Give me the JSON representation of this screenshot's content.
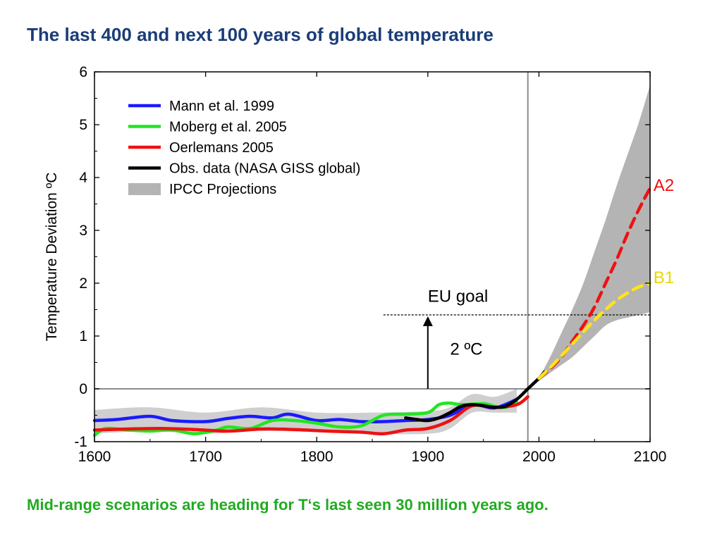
{
  "page": {
    "title": "The last 400 and next 100 years of global temperature",
    "caption": "Mid-range scenarios are heading for T‘s last seen 30 million years ago."
  },
  "chart_data": {
    "type": "line",
    "title": "The last 400 and next 100 years of global temperature",
    "xlabel": "",
    "ylabel": "Temperature Deviation ºC",
    "xlim": [
      1600,
      2100
    ],
    "ylim": [
      -1,
      6
    ],
    "x_ticks": [
      1600,
      1700,
      1800,
      1900,
      2000,
      2100
    ],
    "y_ticks": [
      -1,
      0,
      1,
      2,
      3,
      4,
      5,
      6
    ],
    "grid": false,
    "legend_position": "top-left",
    "legend": [
      {
        "label": "Mann et al. 1999",
        "color": "#1a1aff",
        "style": "line"
      },
      {
        "label": "Moberg et al. 2005",
        "color": "#22e622",
        "style": "line"
      },
      {
        "label": "Oerlemans 2005",
        "color": "#ee1111",
        "style": "line"
      },
      {
        "label": "Obs. data (NASA GISS global)",
        "color": "#000000",
        "style": "line"
      },
      {
        "label": "IPCC Projections",
        "color": "#b4b4b4",
        "style": "band"
      }
    ],
    "bands": [
      {
        "name": "Historical uncertainty",
        "color": "#cfcfcf",
        "x": [
          1600,
          1650,
          1700,
          1750,
          1800,
          1850,
          1900,
          1920,
          1940,
          1960,
          1980
        ],
        "upper": [
          -0.4,
          -0.35,
          -0.45,
          -0.35,
          -0.45,
          -0.45,
          -0.42,
          -0.35,
          -0.1,
          -0.15,
          0.0
        ],
        "lower": [
          -0.85,
          -0.8,
          -0.85,
          -0.8,
          -0.82,
          -0.85,
          -0.85,
          -0.75,
          -0.45,
          -0.45,
          -0.45
        ]
      },
      {
        "name": "IPCC Projections",
        "color": "#b4b4b4",
        "x": [
          2000,
          2010,
          2020,
          2030,
          2040,
          2050,
          2060,
          2070,
          2080,
          2090,
          2100
        ],
        "upper": [
          0.2,
          0.6,
          1.05,
          1.5,
          2.0,
          2.6,
          3.2,
          3.85,
          4.45,
          5.05,
          5.75
        ],
        "lower": [
          0.15,
          0.3,
          0.45,
          0.6,
          0.8,
          1.0,
          1.2,
          1.3,
          1.35,
          1.4,
          1.45
        ]
      }
    ],
    "series": [
      {
        "name": "Mann et al. 1999",
        "color": "#1a1aff",
        "x": [
          1600,
          1620,
          1650,
          1670,
          1700,
          1720,
          1740,
          1760,
          1775,
          1800,
          1820,
          1840,
          1860,
          1880,
          1900,
          1920,
          1940,
          1960,
          1980
        ],
        "y": [
          -0.6,
          -0.58,
          -0.52,
          -0.6,
          -0.62,
          -0.56,
          -0.52,
          -0.55,
          -0.48,
          -0.6,
          -0.58,
          -0.62,
          -0.62,
          -0.6,
          -0.58,
          -0.5,
          -0.3,
          -0.36,
          -0.2
        ]
      },
      {
        "name": "Moberg et al. 2005",
        "color": "#22e622",
        "x": [
          1600,
          1610,
          1630,
          1650,
          1670,
          1690,
          1710,
          1720,
          1740,
          1760,
          1780,
          1800,
          1820,
          1840,
          1860,
          1880,
          1900,
          1910,
          1920,
          1930,
          1950,
          1960,
          1970,
          1980
        ],
        "y": [
          -0.88,
          -0.75,
          -0.78,
          -0.8,
          -0.78,
          -0.85,
          -0.78,
          -0.72,
          -0.75,
          -0.6,
          -0.6,
          -0.65,
          -0.72,
          -0.7,
          -0.5,
          -0.48,
          -0.45,
          -0.3,
          -0.27,
          -0.3,
          -0.28,
          -0.33,
          -0.35,
          -0.25
        ]
      },
      {
        "name": "Oerlemans 2005",
        "color": "#ee1111",
        "x": [
          1600,
          1630,
          1660,
          1690,
          1720,
          1750,
          1780,
          1810,
          1840,
          1860,
          1880,
          1900,
          1920,
          1940,
          1960,
          1980,
          1990
        ],
        "y": [
          -0.78,
          -0.76,
          -0.75,
          -0.77,
          -0.8,
          -0.76,
          -0.77,
          -0.8,
          -0.82,
          -0.85,
          -0.78,
          -0.75,
          -0.6,
          -0.32,
          -0.35,
          -0.3,
          -0.15
        ]
      },
      {
        "name": "Obs. data (NASA GISS global)",
        "color": "#000000",
        "x": [
          1880,
          1890,
          1900,
          1910,
          1920,
          1930,
          1940,
          1950,
          1960,
          1970,
          1980,
          1990,
          2000,
          2005
        ],
        "y": [
          -0.55,
          -0.58,
          -0.6,
          -0.55,
          -0.45,
          -0.33,
          -0.3,
          -0.32,
          -0.35,
          -0.33,
          -0.2,
          0.0,
          0.2,
          0.32
        ]
      },
      {
        "name": "A2",
        "color": "#ee1111",
        "dashed": true,
        "x": [
          2000,
          2010,
          2020,
          2030,
          2040,
          2050,
          2060,
          2070,
          2080,
          2090,
          2100
        ],
        "y": [
          0.2,
          0.38,
          0.6,
          0.9,
          1.2,
          1.55,
          2.0,
          2.45,
          2.95,
          3.4,
          3.8
        ]
      },
      {
        "name": "B1",
        "color": "#ffe31a",
        "dashed": true,
        "x": [
          2000,
          2010,
          2020,
          2030,
          2040,
          2050,
          2060,
          2070,
          2080,
          2090,
          2100
        ],
        "y": [
          0.2,
          0.4,
          0.62,
          0.85,
          1.08,
          1.3,
          1.5,
          1.68,
          1.82,
          1.93,
          2.0
        ]
      }
    ],
    "reference_lines": [
      {
        "orientation": "horizontal",
        "value": 0,
        "color": "#8c8c8c"
      },
      {
        "orientation": "vertical",
        "value": 1990,
        "color": "#8c8c8c"
      },
      {
        "orientation": "horizontal",
        "value": 1.4,
        "x_from": 1860,
        "x_to": 2100,
        "style": "dashed",
        "color": "#000000"
      }
    ],
    "annotations": [
      {
        "text": "EU goal",
        "x": 1900,
        "y": 1.65,
        "color": "#000000"
      },
      {
        "text": "2 ºC",
        "x": 1920,
        "y": 0.65,
        "color": "#000000"
      },
      {
        "text": "A2",
        "x": 2103,
        "y": 3.75,
        "color": "#ee1111"
      },
      {
        "text": "B1",
        "x": 2103,
        "y": 2.0,
        "color": "#e8d800"
      }
    ],
    "arrow": {
      "x": 1900,
      "from": 0,
      "to": 1.4,
      "color": "#000000"
    }
  }
}
